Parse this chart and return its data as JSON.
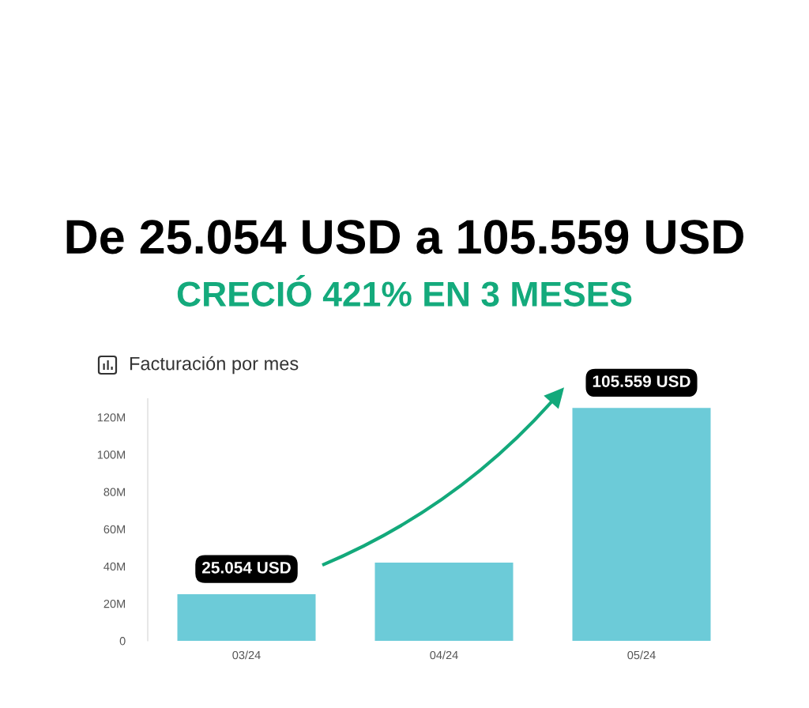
{
  "chart_data": {
    "type": "bar",
    "title": "De 25.054 USD a 105.559 USD",
    "subtitle": "CRECIÓ 421% EN 3 MESES",
    "categories": [
      "03/24",
      "04/24",
      "05/24"
    ],
    "values": [
      25,
      42,
      125
    ],
    "color": "#6ccbd8",
    "ylim": [
      0,
      130
    ],
    "yticks": [
      0,
      {
        "value": 20,
        "label": "20M"
      },
      {
        "value": 40,
        "label": "40M"
      },
      {
        "value": 60,
        "label": "60M"
      },
      {
        "value": 80,
        "label": "80M"
      },
      {
        "value": 100,
        "label": "100M"
      },
      {
        "value": 120,
        "label": "120M"
      }
    ],
    "annotations": [
      "Facturación por mes",
      {
        "text": "25.054 USD",
        "x": "03/24",
        "y": 25
      },
      {
        "text": "105.559 USD",
        "x": "05/24",
        "y": 125
      }
    ]
  }
}
